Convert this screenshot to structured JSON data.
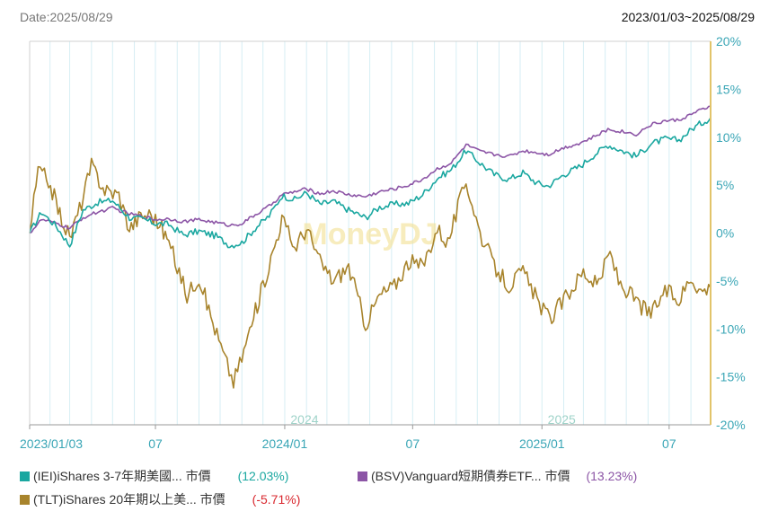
{
  "header": {
    "date_label": "Date:2025/08/29",
    "range_label": "2023/01/03~2025/08/29"
  },
  "watermark": "MoneyDJ",
  "colors": {
    "iei": "#1aa7a0",
    "bsv": "#8c55a6",
    "tlt": "#a8842c",
    "axis_right": "#e2c46a",
    "tick_text": "#3aa6b6",
    "negative": "#d9282f",
    "grid": "#d6eef4"
  },
  "legend": [
    {
      "label": "(IEI)iShares 3-7年期美國... 市價",
      "value": "(12.03%)",
      "color": "#1aa7a0"
    },
    {
      "label": "(BSV)Vanguard短期債券ETF... 市價",
      "value": "(13.23%)",
      "color": "#8c55a6"
    },
    {
      "label": "(TLT)iShares 20年期以上美... 市價",
      "value": "(-5.71%)",
      "color": "#a8842c"
    }
  ],
  "chart_data": {
    "type": "line",
    "x_range": [
      "2023-01-03",
      "2025-08-29"
    ],
    "ylim": [
      -20,
      20
    ],
    "y_ticks": [
      "20%",
      "15%",
      "10%",
      "5%",
      "0%",
      "-5%",
      "-10%",
      "-15%",
      "-20%"
    ],
    "x_ticks": [
      {
        "date": "2023-01-03",
        "label": "2023/01/03"
      },
      {
        "date": "2023-07-01",
        "label": "07"
      },
      {
        "date": "2024-01-01",
        "label": "2024/01"
      },
      {
        "date": "2024-07-01",
        "label": "07"
      },
      {
        "date": "2025-01-01",
        "label": "2025/01"
      },
      {
        "date": "2025-07-01",
        "label": "07"
      }
    ],
    "year_labels": [
      {
        "date": "2024-01-01",
        "label": "2024"
      },
      {
        "date": "2025-01-01",
        "label": "2025"
      }
    ],
    "grid": "vertical-monthly",
    "series": [
      {
        "name": "(IEI)iShares 3-7年期美國... 市價",
        "color": "#1aa7a0",
        "points": [
          [
            "2023-01-03",
            0.0
          ],
          [
            "2023-01-20",
            2.2
          ],
          [
            "2023-02-10",
            0.7
          ],
          [
            "2023-03-01",
            -1.3
          ],
          [
            "2023-03-20",
            2.4
          ],
          [
            "2023-04-10",
            3.2
          ],
          [
            "2023-05-01",
            3.4
          ],
          [
            "2023-05-25",
            1.6
          ],
          [
            "2023-06-15",
            1.4
          ],
          [
            "2023-07-01",
            1.0
          ],
          [
            "2023-07-20",
            0.9
          ],
          [
            "2023-08-10",
            -0.2
          ],
          [
            "2023-09-01",
            0.2
          ],
          [
            "2023-09-25",
            -0.3
          ],
          [
            "2023-10-15",
            -1.3
          ],
          [
            "2023-11-01",
            -1.0
          ],
          [
            "2023-11-20",
            0.5
          ],
          [
            "2023-12-10",
            1.8
          ],
          [
            "2023-12-28",
            3.9
          ],
          [
            "2024-01-15",
            3.5
          ],
          [
            "2024-02-01",
            4.2
          ],
          [
            "2024-02-20",
            3.0
          ],
          [
            "2024-03-10",
            3.3
          ],
          [
            "2024-04-01",
            2.4
          ],
          [
            "2024-04-25",
            1.6
          ],
          [
            "2024-05-15",
            2.7
          ],
          [
            "2024-06-05",
            3.0
          ],
          [
            "2024-06-25",
            3.1
          ],
          [
            "2024-07-15",
            4.0
          ],
          [
            "2024-08-05",
            5.7
          ],
          [
            "2024-08-25",
            6.6
          ],
          [
            "2024-09-15",
            8.6
          ],
          [
            "2024-10-05",
            7.3
          ],
          [
            "2024-10-25",
            6.1
          ],
          [
            "2024-11-15",
            5.6
          ],
          [
            "2024-12-05",
            6.3
          ],
          [
            "2024-12-25",
            5.2
          ],
          [
            "2025-01-10",
            4.9
          ],
          [
            "2025-02-01",
            6.1
          ],
          [
            "2025-02-25",
            7.0
          ],
          [
            "2025-03-15",
            8.1
          ],
          [
            "2025-04-05",
            9.2
          ],
          [
            "2025-04-25",
            8.6
          ],
          [
            "2025-05-15",
            8.0
          ],
          [
            "2025-06-05",
            9.3
          ],
          [
            "2025-06-25",
            9.8
          ],
          [
            "2025-07-15",
            9.7
          ],
          [
            "2025-08-05",
            11.0
          ],
          [
            "2025-08-29",
            12.03
          ]
        ]
      },
      {
        "name": "(BSV)Vanguard短期債券ETF... 市價",
        "color": "#8c55a6",
        "points": [
          [
            "2023-01-03",
            0.0
          ],
          [
            "2023-01-20",
            1.4
          ],
          [
            "2023-02-10",
            1.0
          ],
          [
            "2023-03-01",
            0.5
          ],
          [
            "2023-03-20",
            1.6
          ],
          [
            "2023-04-10",
            2.2
          ],
          [
            "2023-05-01",
            2.6
          ],
          [
            "2023-05-25",
            2.0
          ],
          [
            "2023-06-15",
            1.7
          ],
          [
            "2023-07-01",
            1.4
          ],
          [
            "2023-07-20",
            1.5
          ],
          [
            "2023-08-10",
            1.2
          ],
          [
            "2023-09-01",
            1.4
          ],
          [
            "2023-09-25",
            1.1
          ],
          [
            "2023-10-15",
            0.8
          ],
          [
            "2023-11-01",
            1.0
          ],
          [
            "2023-11-20",
            1.9
          ],
          [
            "2023-12-10",
            2.8
          ],
          [
            "2023-12-28",
            4.0
          ],
          [
            "2024-01-15",
            4.3
          ],
          [
            "2024-02-01",
            4.6
          ],
          [
            "2024-02-20",
            4.1
          ],
          [
            "2024-03-10",
            4.4
          ],
          [
            "2024-04-01",
            4.0
          ],
          [
            "2024-04-25",
            3.8
          ],
          [
            "2024-05-15",
            4.3
          ],
          [
            "2024-06-05",
            4.6
          ],
          [
            "2024-06-25",
            5.0
          ],
          [
            "2024-07-15",
            5.6
          ],
          [
            "2024-08-05",
            6.7
          ],
          [
            "2024-08-25",
            7.3
          ],
          [
            "2024-09-15",
            9.2
          ],
          [
            "2024-10-05",
            8.5
          ],
          [
            "2024-10-25",
            8.2
          ],
          [
            "2024-11-15",
            8.0
          ],
          [
            "2024-12-05",
            8.6
          ],
          [
            "2024-12-25",
            8.4
          ],
          [
            "2025-01-10",
            8.2
          ],
          [
            "2025-02-01",
            8.9
          ],
          [
            "2025-02-25",
            9.4
          ],
          [
            "2025-03-15",
            10.0
          ],
          [
            "2025-04-05",
            10.8
          ],
          [
            "2025-04-25",
            10.6
          ],
          [
            "2025-05-15",
            10.3
          ],
          [
            "2025-06-05",
            11.3
          ],
          [
            "2025-06-25",
            11.7
          ],
          [
            "2025-07-15",
            11.8
          ],
          [
            "2025-08-05",
            12.5
          ],
          [
            "2025-08-29",
            13.23
          ]
        ]
      },
      {
        "name": "(TLT)iShares 20年期以上美... 市價",
        "color": "#a8842c",
        "points": [
          [
            "2023-01-03",
            0.0
          ],
          [
            "2023-01-15",
            6.5
          ],
          [
            "2023-01-30",
            5.5
          ],
          [
            "2023-02-15",
            2.0
          ],
          [
            "2023-03-01",
            -0.5
          ],
          [
            "2023-03-15",
            2.5
          ],
          [
            "2023-04-01",
            7.0
          ],
          [
            "2023-04-20",
            4.5
          ],
          [
            "2023-05-10",
            4.0
          ],
          [
            "2023-05-25",
            0.5
          ],
          [
            "2023-06-10",
            1.8
          ],
          [
            "2023-06-25",
            2.0
          ],
          [
            "2023-07-10",
            0.5
          ],
          [
            "2023-07-20",
            -1.0
          ],
          [
            "2023-08-01",
            -3.5
          ],
          [
            "2023-08-15",
            -6.5
          ],
          [
            "2023-09-01",
            -4.5
          ],
          [
            "2023-09-15",
            -8.0
          ],
          [
            "2023-10-05",
            -12.5
          ],
          [
            "2023-10-20",
            -15.5
          ],
          [
            "2023-11-01",
            -13.0
          ],
          [
            "2023-11-15",
            -9.5
          ],
          [
            "2023-12-01",
            -5.5
          ],
          [
            "2023-12-15",
            -2.0
          ],
          [
            "2023-12-28",
            1.5
          ],
          [
            "2024-01-15",
            -1.5
          ],
          [
            "2024-02-01",
            0.5
          ],
          [
            "2024-02-20",
            -3.0
          ],
          [
            "2024-03-10",
            -5.0
          ],
          [
            "2024-04-01",
            -3.5
          ],
          [
            "2024-04-25",
            -9.5
          ],
          [
            "2024-05-15",
            -6.5
          ],
          [
            "2024-06-05",
            -5.5
          ],
          [
            "2024-06-25",
            -3.0
          ],
          [
            "2024-07-15",
            -3.5
          ],
          [
            "2024-08-05",
            0.5
          ],
          [
            "2024-08-20",
            -1.0
          ],
          [
            "2024-09-15",
            5.5
          ],
          [
            "2024-10-05",
            0.0
          ],
          [
            "2024-10-25",
            -3.5
          ],
          [
            "2024-11-15",
            -5.5
          ],
          [
            "2024-12-05",
            -4.0
          ],
          [
            "2024-12-25",
            -7.0
          ],
          [
            "2025-01-12",
            -9.0
          ],
          [
            "2025-02-01",
            -7.0
          ],
          [
            "2025-03-01",
            -4.0
          ],
          [
            "2025-03-20",
            -5.5
          ],
          [
            "2025-04-08",
            -2.0
          ],
          [
            "2025-04-20",
            -5.0
          ],
          [
            "2025-05-20",
            -7.5
          ],
          [
            "2025-06-05",
            -8.5
          ],
          [
            "2025-06-25",
            -6.0
          ],
          [
            "2025-07-15",
            -7.0
          ],
          [
            "2025-08-01",
            -4.5
          ],
          [
            "2025-08-15",
            -6.0
          ],
          [
            "2025-08-29",
            -5.71
          ]
        ]
      }
    ]
  }
}
